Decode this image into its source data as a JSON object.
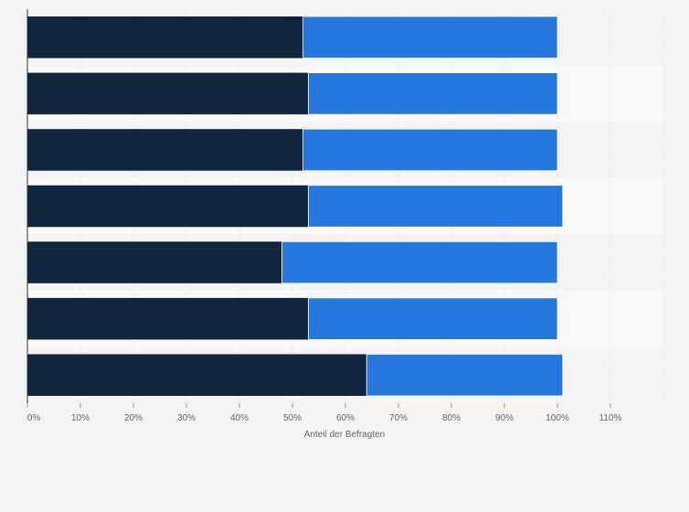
{
  "chart_data": {
    "type": "bar",
    "orientation": "horizontal",
    "stacked": true,
    "title": "",
    "xlabel": "Anteil der Befragten",
    "ylabel": "",
    "xlim": [
      0,
      120
    ],
    "x_ticks": [
      "0%",
      "10%",
      "20%",
      "30%",
      "40%",
      "50%",
      "60%",
      "70%",
      "80%",
      "90%",
      "100%",
      "110%"
    ],
    "categories": [
      "",
      "",
      "",
      "",
      "",
      "",
      ""
    ],
    "series": [
      {
        "name": "",
        "color": "#12263f",
        "values": [
          52,
          53,
          52,
          53,
          48,
          53,
          64
        ]
      },
      {
        "name": "",
        "color": "#2778de",
        "values": [
          48,
          47,
          48,
          48,
          52,
          47,
          37
        ]
      }
    ],
    "grid": true,
    "legend": "none"
  },
  "colors": {
    "background": "#f4f4f4",
    "band_alt": "#f9f9f9",
    "grid": "#dddddd",
    "axis": "#333333"
  }
}
